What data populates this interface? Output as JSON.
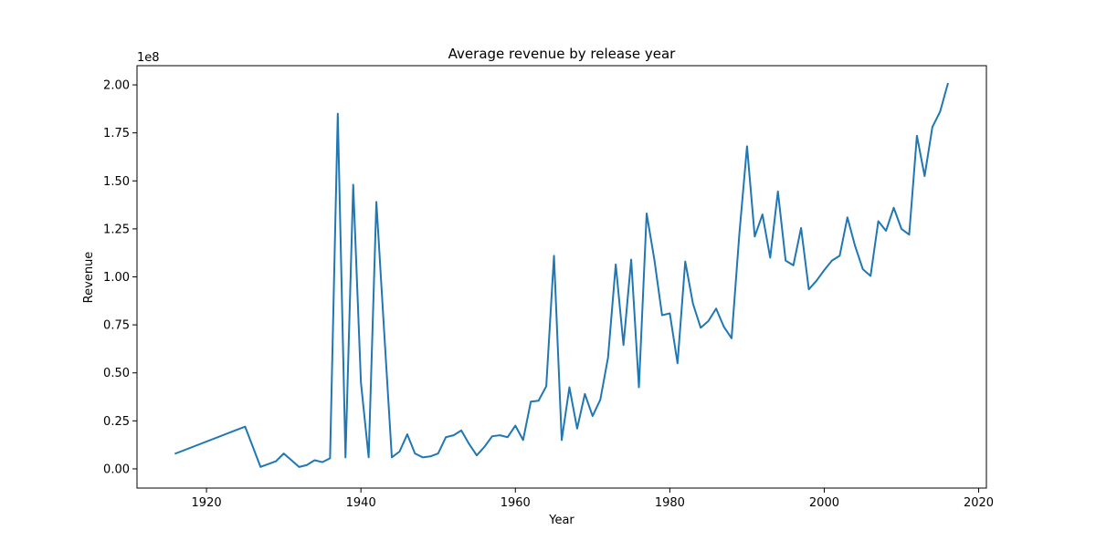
{
  "chart_data": {
    "type": "line",
    "title": "Average revenue by release year",
    "xlabel": "Year",
    "ylabel": "Revenue",
    "y_offset_label": "1e8",
    "xlim": [
      1911,
      2021
    ],
    "ylim": [
      -0.1,
      2.1
    ],
    "x_ticks": [
      1920,
      1940,
      1960,
      1980,
      2000,
      2020
    ],
    "x_tick_labels": [
      "1920",
      "1940",
      "1960",
      "1980",
      "2000",
      "2020"
    ],
    "y_ticks": [
      0,
      0.25,
      0.5,
      0.75,
      1.0,
      1.25,
      1.5,
      1.75,
      2.0
    ],
    "y_tick_labels": [
      "0.00",
      "0.25",
      "0.50",
      "0.75",
      "1.00",
      "1.25",
      "1.50",
      "1.75",
      "2.00"
    ],
    "grid": false,
    "color": "#1f77b4",
    "series": [
      {
        "x": [
          1916,
          1925,
          1927,
          1929,
          1930,
          1932,
          1933,
          1934,
          1935,
          1936,
          1937,
          1938,
          1939,
          1940,
          1941,
          1942,
          1943,
          1944,
          1945,
          1946,
          1947,
          1948,
          1949,
          1950,
          1951,
          1952,
          1953,
          1954,
          1955,
          1956,
          1957,
          1958,
          1959,
          1960,
          1961,
          1962,
          1963,
          1964,
          1965,
          1966,
          1967,
          1968,
          1969,
          1970,
          1971,
          1972,
          1973,
          1974,
          1975,
          1976,
          1977,
          1978,
          1979,
          1980,
          1981,
          1982,
          1983,
          1984,
          1985,
          1986,
          1987,
          1988,
          1989,
          1990,
          1991,
          1992,
          1993,
          1994,
          1995,
          1996,
          1997,
          1998,
          1999,
          2000,
          2001,
          2002,
          2003,
          2004,
          2005,
          2006,
          2007,
          2008,
          2009,
          2010,
          2011,
          2012,
          2013,
          2014,
          2015,
          2016
        ],
        "values": [
          0.08,
          0.22,
          0.01,
          0.04,
          0.08,
          0.01,
          0.02,
          0.045,
          0.035,
          0.055,
          1.85,
          0.06,
          1.48,
          0.45,
          0.06,
          1.39,
          0.72,
          0.06,
          0.09,
          0.18,
          0.08,
          0.06,
          0.065,
          0.08,
          0.165,
          0.175,
          0.2,
          0.13,
          0.07,
          0.115,
          0.17,
          0.175,
          0.165,
          0.225,
          0.15,
          0.35,
          0.355,
          0.43,
          1.11,
          0.15,
          0.425,
          0.21,
          0.39,
          0.275,
          0.36,
          0.58,
          1.065,
          0.645,
          1.09,
          0.425,
          1.33,
          1.09,
          0.8,
          0.81,
          0.55,
          1.08,
          0.86,
          0.735,
          0.77,
          0.835,
          0.74,
          0.68,
          1.22,
          1.68,
          1.21,
          1.325,
          1.1,
          1.445,
          1.085,
          1.06,
          1.255,
          0.935,
          0.98,
          1.035,
          1.085,
          1.11,
          1.31,
          1.16,
          1.04,
          1.005,
          1.29,
          1.24,
          1.36,
          1.25,
          1.22,
          1.735,
          1.525,
          1.78,
          1.86,
          2.005
        ]
      }
    ]
  }
}
